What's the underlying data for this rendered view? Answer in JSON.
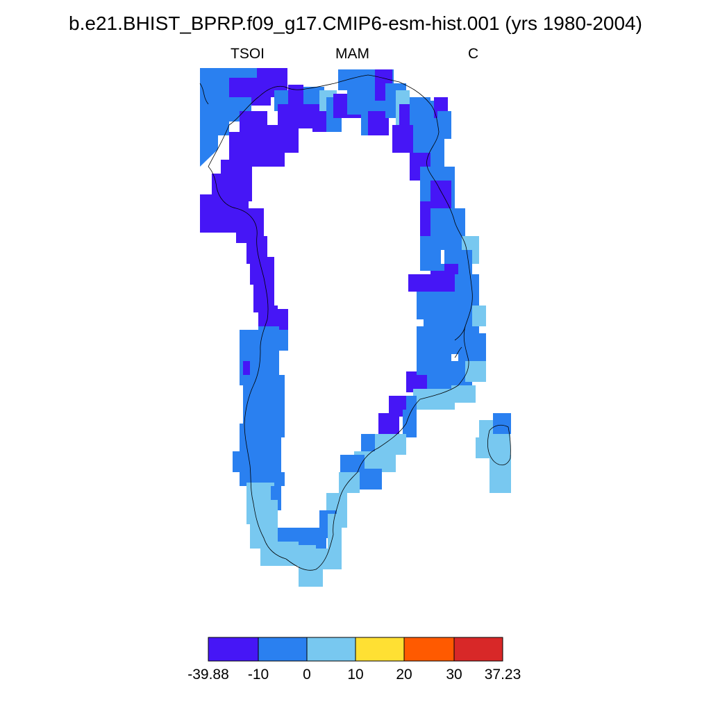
{
  "title": "b.e21.BHIST_BPRP.f09_g17.CMIP6-esm-hist.001 (yrs 1980-2004)",
  "subtitle_left": "TSOI",
  "subtitle_center": "MAM",
  "subtitle_right": "C",
  "colorbar": {
    "min_label": "-39.88",
    "max_label": "37.23",
    "bins": [
      {
        "from": "-39.88",
        "to": "-10",
        "color": "#4616f6"
      },
      {
        "from": "-10",
        "to": "0",
        "color": "#2a80f0"
      },
      {
        "from": "0",
        "to": "10",
        "color": "#78c8f0"
      },
      {
        "from": "10",
        "to": "20",
        "color": "#ffe033"
      },
      {
        "from": "20",
        "to": "30",
        "color": "#ff5a00"
      },
      {
        "from": "30",
        "to": "37.23",
        "color": "#d82828"
      }
    ],
    "tick_labels": [
      "-39.88",
      "-10",
      "0",
      "10",
      "20",
      "30",
      "37.23"
    ]
  },
  "colors": {
    "purple": "#4616f6",
    "blue": "#2a80f0",
    "lightblue": "#78c8f0",
    "coastline": "#000000"
  }
}
